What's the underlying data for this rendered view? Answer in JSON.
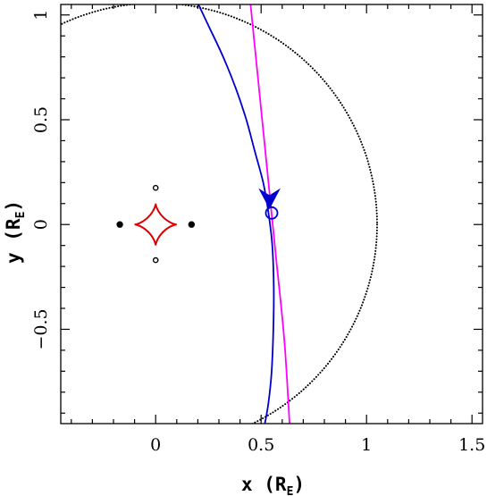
{
  "chart_data": {
    "type": "line",
    "title": "",
    "xlabel": {
      "main": "x (R",
      "sub": "E",
      "close": ")"
    },
    "ylabel": {
      "main": "y (R",
      "sub": "E",
      "close": ")"
    },
    "xlim": [
      -0.45,
      1.55
    ],
    "ylim": [
      -0.95,
      1.05
    ],
    "xticks": [
      0,
      0.5,
      1,
      1.5
    ],
    "xtick_labels": [
      "0",
      "0.5",
      "1",
      "1.5"
    ],
    "yticks": [
      -0.5,
      0,
      0.5,
      1
    ],
    "ytick_labels": [
      "−0.5",
      "0",
      "0.5",
      "1"
    ],
    "grid": false,
    "einstein_ring": {
      "center": [
        0,
        0
      ],
      "radius": 1.05,
      "style": "dotted",
      "color": "#000000"
    },
    "caustic": {
      "center": [
        0,
        0
      ],
      "half_width": 0.1,
      "color": "#dd0000"
    },
    "lens_images": [
      {
        "x": -0.17,
        "y": 0.0,
        "filled": true
      },
      {
        "x": 0.17,
        "y": 0.0,
        "filled": true
      },
      {
        "x": 0.0,
        "y": 0.175,
        "filled": false
      },
      {
        "x": 0.0,
        "y": -0.17,
        "filled": false
      }
    ],
    "source_position": {
      "x": 0.55,
      "y": 0.055,
      "color": "#0000cc"
    },
    "series": [
      {
        "color": "#0000cc",
        "x": [
          0.203,
          0.25,
          0.32,
          0.38,
          0.43,
          0.47,
          0.51,
          0.535,
          0.553,
          0.56,
          0.558,
          0.55,
          0.535,
          0.518
        ],
        "y": [
          1.05,
          0.95,
          0.8,
          0.65,
          0.5,
          0.35,
          0.2,
          0.055,
          -0.1,
          -0.3,
          -0.5,
          -0.7,
          -0.85,
          -0.95
        ]
      },
      {
        "color": "#ff00ff",
        "x": [
          0.45,
          0.49,
          0.53,
          0.57,
          0.61,
          0.635
        ],
        "y": [
          1.05,
          0.65,
          0.25,
          -0.15,
          -0.55,
          -0.95
        ]
      }
    ],
    "direction_arrow": {
      "x": 0.54,
      "y": 0.12,
      "color": "#0000cc"
    }
  }
}
